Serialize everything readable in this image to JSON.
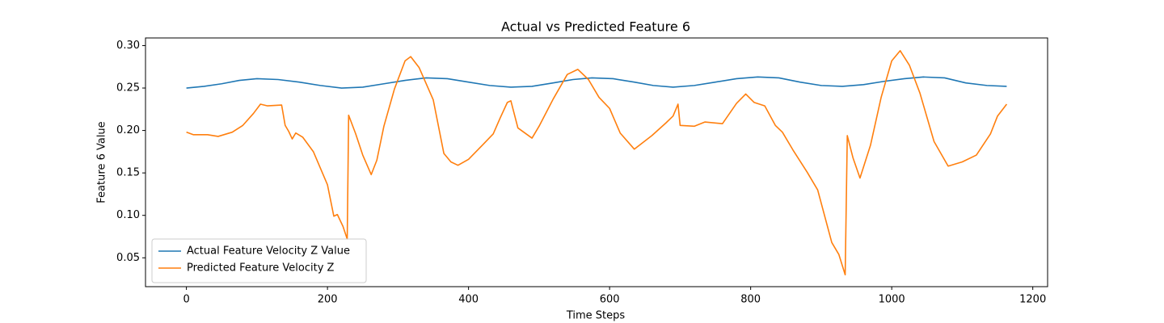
{
  "chart_data": {
    "type": "line",
    "title": "Actual vs Predicted Feature 6",
    "x_label": "Time Steps",
    "y_label": "Feature 6 Value",
    "xlim": [
      -58,
      1221
    ],
    "ylim": [
      0.016,
      0.309
    ],
    "xticks": [
      0,
      200,
      400,
      600,
      800,
      1000,
      1200
    ],
    "yticks": [
      0.05,
      {
        "value": 0.1,
        "label": "0.10"
      },
      0.15,
      {
        "value": 0.2,
        "label": "0.20"
      },
      0.25,
      {
        "value": 0.3,
        "label": "0.30"
      }
    ],
    "legend": "lower left",
    "series": [
      {
        "name": "Actual Feature Velocity Z Value",
        "color": "#1f77b4",
        "x": [
          0,
          25,
          50,
          75,
          100,
          130,
          160,
          190,
          220,
          250,
          280,
          310,
          340,
          370,
          400,
          430,
          460,
          490,
          520,
          548,
          575,
          605,
          635,
          662,
          690,
          720,
          750,
          780,
          810,
          840,
          870,
          900,
          930,
          960,
          990,
          1018,
          1045,
          1075,
          1105,
          1135,
          1163
        ],
        "values": [
          0.25,
          0.252,
          0.255,
          0.259,
          0.261,
          0.26,
          0.257,
          0.253,
          0.25,
          0.251,
          0.255,
          0.259,
          0.262,
          0.261,
          0.257,
          0.253,
          0.251,
          0.252,
          0.256,
          0.26,
          0.262,
          0.261,
          0.257,
          0.253,
          0.251,
          0.253,
          0.257,
          0.261,
          0.263,
          0.262,
          0.257,
          0.253,
          0.252,
          0.254,
          0.258,
          0.261,
          0.263,
          0.262,
          0.256,
          0.253,
          0.252
        ]
      },
      {
        "name": "Predicted Feature Velocity Z",
        "color": "#ff7f0e",
        "x": [
          0,
          10,
          30,
          45,
          65,
          80,
          95,
          105,
          115,
          135,
          140,
          145,
          150,
          155,
          165,
          180,
          200,
          209,
          214,
          222,
          228,
          230,
          240,
          250,
          262,
          270,
          280,
          295,
          310,
          318,
          330,
          350,
          365,
          375,
          385,
          400,
          420,
          435,
          445,
          455,
          460,
          470,
          490,
          500,
          520,
          540,
          555,
          570,
          585,
          600,
          615,
          635,
          660,
          680,
          690,
          697,
          700,
          720,
          735,
          760,
          780,
          793,
          805,
          820,
          835,
          845,
          860,
          880,
          895,
          915,
          925,
          934,
          937,
          945,
          955,
          970,
          985,
          1000,
          1012,
          1025,
          1040,
          1060,
          1080,
          1100,
          1120,
          1140,
          1150,
          1163
        ],
        "values": [
          0.198,
          0.195,
          0.195,
          0.193,
          0.198,
          0.206,
          0.22,
          0.231,
          0.229,
          0.23,
          0.206,
          0.199,
          0.19,
          0.197,
          0.192,
          0.175,
          0.136,
          0.099,
          0.101,
          0.087,
          0.072,
          0.218,
          0.196,
          0.171,
          0.148,
          0.165,
          0.205,
          0.249,
          0.282,
          0.287,
          0.274,
          0.236,
          0.173,
          0.163,
          0.159,
          0.166,
          0.183,
          0.196,
          0.215,
          0.233,
          0.235,
          0.203,
          0.191,
          0.205,
          0.237,
          0.266,
          0.272,
          0.26,
          0.239,
          0.226,
          0.197,
          0.178,
          0.194,
          0.209,
          0.217,
          0.231,
          0.206,
          0.205,
          0.21,
          0.208,
          0.232,
          0.243,
          0.233,
          0.229,
          0.206,
          0.198,
          0.177,
          0.151,
          0.13,
          0.068,
          0.054,
          0.03,
          0.194,
          0.168,
          0.144,
          0.183,
          0.239,
          0.282,
          0.294,
          0.277,
          0.244,
          0.187,
          0.158,
          0.163,
          0.171,
          0.196,
          0.217,
          0.231
        ]
      }
    ]
  }
}
